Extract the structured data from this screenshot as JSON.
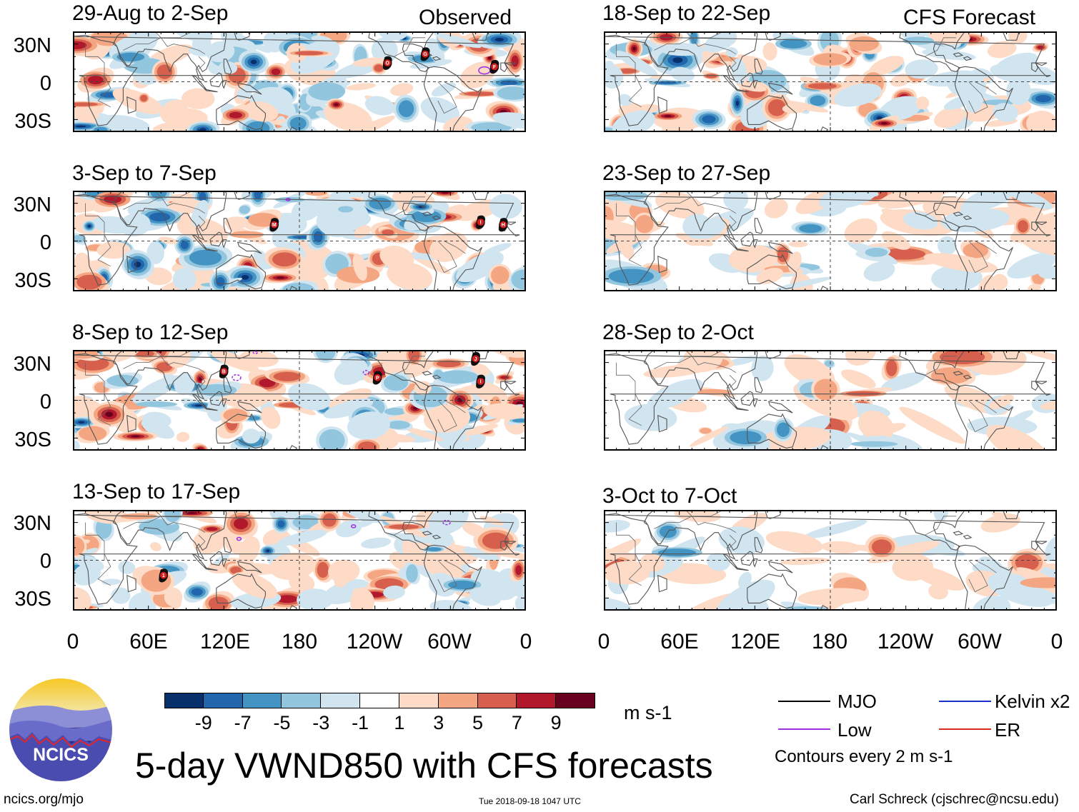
{
  "columns": {
    "left_tag": "Observed",
    "right_tag": "CFS Forecast"
  },
  "panels_left": [
    {
      "period": "29-Aug to 2-Sep",
      "storms": [
        "O",
        "G",
        "F"
      ]
    },
    {
      "period": "3-Sep to 7-Sep",
      "storms": [
        "M",
        "I",
        "H"
      ]
    },
    {
      "period": "8-Sep to 12-Sep",
      "storms": [
        "B",
        "P",
        "J",
        "I"
      ]
    },
    {
      "period": "13-Sep to 17-Sep",
      "storms": [
        "1"
      ]
    }
  ],
  "panels_right": [
    {
      "period": "18-Sep to 22-Sep"
    },
    {
      "period": "23-Sep to 27-Sep"
    },
    {
      "period": "28-Sep to 2-Oct"
    },
    {
      "period": "3-Oct to 7-Oct"
    }
  ],
  "lat_labels": [
    "30N",
    "0",
    "30S"
  ],
  "lon_labels": [
    "0",
    "60E",
    "120E",
    "180",
    "120W",
    "60W",
    "0"
  ],
  "colorbar": {
    "unit": "m s-1",
    "colors": [
      "#08306b",
      "#2166ac",
      "#4393c3",
      "#92c5de",
      "#d1e5f0",
      "#ffffff",
      "#fddbc7",
      "#f4a582",
      "#d6604d",
      "#b2182b",
      "#67001f"
    ],
    "labels": [
      "-9",
      "-7",
      "-5",
      "-3",
      "-1",
      "1",
      "3",
      "5",
      "7",
      "9"
    ]
  },
  "legend": {
    "items": [
      {
        "label": "MJO",
        "color": "#000000"
      },
      {
        "label": "Kelvin x2",
        "color": "#1a2fcf"
      },
      {
        "label": "Low",
        "color": "#9b30e0"
      },
      {
        "label": "ER",
        "color": "#d92b1f"
      }
    ],
    "note": "Contours every 2 m s-1"
  },
  "logo": {
    "text": "NCICS"
  },
  "title": "5-day VWND850 with CFS forecasts",
  "footer": {
    "url": "ncics.org/mjo",
    "timestamp": "Tue 2018-09-18 1047 UTC",
    "author": "Carl Schreck (cjschrec@ncsu.edu)"
  }
}
